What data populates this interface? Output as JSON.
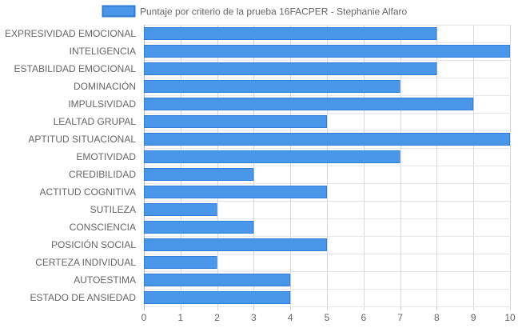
{
  "chart_data": {
    "type": "bar",
    "orientation": "horizontal",
    "legend": {
      "label": "Puntaje por criterio de la prueba 16FACPER - Stephanie Alfaro",
      "position": "top"
    },
    "categories": [
      "EXPRESIVIDAD EMOCIONAL",
      "INTELIGENCIA",
      "ESTABILIDAD EMOCIONAL",
      "DOMINACIÓN",
      "IMPULSIVIDAD",
      "LEALTAD GRUPAL",
      "APTITUD SITUACIONAL",
      "EMOTIVIDAD",
      "CREDIBILIDAD",
      "ACTITUD COGNITIVA",
      "SUTILEZA",
      "CONSCIENCIA",
      "POSICIÓN SOCIAL",
      "CERTEZA INDIVIDUAL",
      "AUTOESTIMA",
      "ESTADO DE ANSIEDAD"
    ],
    "series": [
      {
        "name": "Puntaje por criterio de la prueba 16FACPER - Stephanie Alfaro",
        "values": [
          8,
          10,
          8,
          7,
          9,
          5,
          10,
          7,
          3,
          5,
          2,
          3,
          5,
          2,
          4,
          4
        ],
        "fill": "#4a96e8",
        "stroke": "#2f7ed8"
      }
    ],
    "xlim": [
      0,
      10
    ],
    "x_ticks": [
      "0",
      "1",
      "2",
      "3",
      "4",
      "5",
      "6",
      "7",
      "8",
      "9",
      "10"
    ],
    "grid": true
  }
}
